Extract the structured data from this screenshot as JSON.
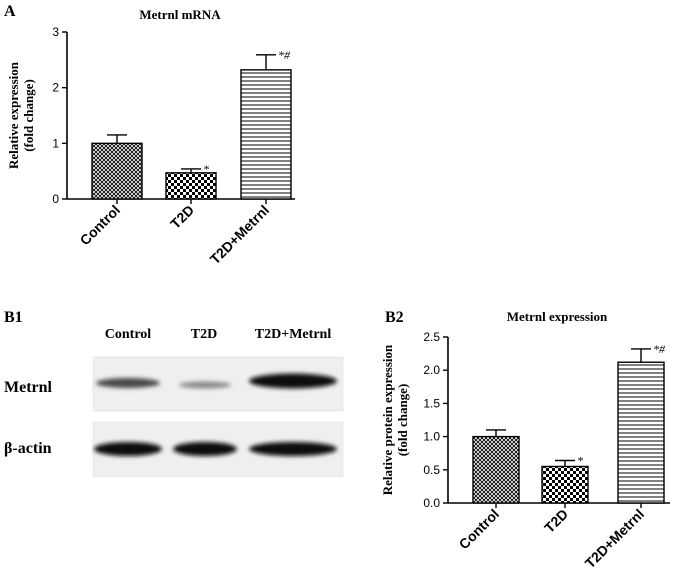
{
  "panels": {
    "a": {
      "letter": "A"
    },
    "b1": {
      "letter": "B1",
      "lanes": [
        "Control",
        "T2D",
        "T2D+Metrnl"
      ],
      "rows": [
        "Metrnl",
        "β-actin"
      ]
    },
    "b2": {
      "letter": "B2"
    }
  },
  "colors": {
    "ink": "#000000",
    "blot_bg": "#f2f2f2",
    "band": "#1a1a1a"
  },
  "chart_data": [
    {
      "type": "bar",
      "panel": "A",
      "title": "Metrnl  mRNA",
      "ylabel_lines": [
        "Relative expression",
        "(fold change)"
      ],
      "categories": [
        "Control",
        "T2D",
        "T2D+Metrnl"
      ],
      "values": [
        1.0,
        0.47,
        2.32
      ],
      "errors": [
        0.15,
        0.07,
        0.27
      ],
      "annotations": [
        "",
        "*",
        "*#"
      ],
      "patterns": [
        "crosshatch",
        "checker",
        "horizontal-lines"
      ],
      "ylim": [
        0,
        3
      ],
      "yticks": [
        "0",
        "1",
        "2",
        "3"
      ]
    },
    {
      "type": "bar",
      "panel": "B2",
      "title": "Metrnl  expression",
      "ylabel_lines": [
        "Relative protein expression",
        "(fold change)"
      ],
      "categories": [
        "Control",
        "T2D",
        "T2D+Metrnl"
      ],
      "values": [
        1.0,
        0.55,
        2.12
      ],
      "errors": [
        0.1,
        0.09,
        0.2
      ],
      "annotations": [
        "",
        "*",
        "*#"
      ],
      "patterns": [
        "crosshatch",
        "checker",
        "horizontal-lines"
      ],
      "ylim": [
        0,
        2.5
      ],
      "yticks": [
        "0.0",
        "0.5",
        "1.0",
        "1.5",
        "2.0",
        "2.5"
      ]
    }
  ]
}
